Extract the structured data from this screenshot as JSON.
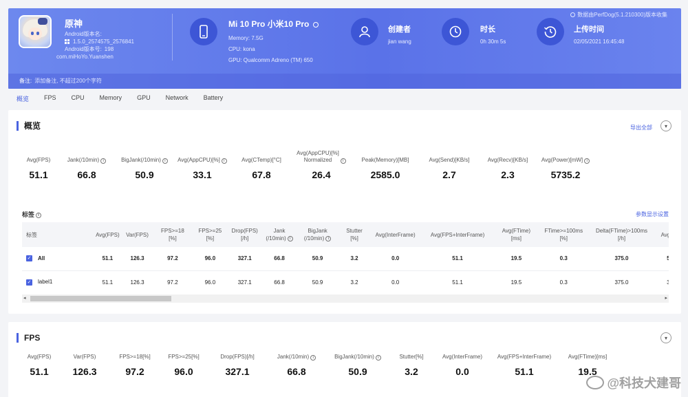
{
  "app": {
    "name": "原神",
    "android_version_name_label": "Android版本名:",
    "android_version_name": "1.5.0_2574575_2576841",
    "android_version_code_label": "Android版本号:",
    "android_version_code": "198",
    "package": "com.miHoYo.Yuanshen"
  },
  "device": {
    "title": "Mi 10 Pro 小米10 Pro",
    "memory": "Memory: 7.5G",
    "cpu": "CPU: kona",
    "gpu": "GPU: Qualcomm Adreno (TM) 650"
  },
  "creator": {
    "label": "创建者",
    "value": "jian wang"
  },
  "duration": {
    "label": "时长",
    "value": "0h 30m 5s"
  },
  "upload": {
    "label": "上传时间",
    "value": "02/05/2021 16:45:48"
  },
  "top_note": "数据由PerfDog(5.1.210300)版本收集",
  "notes": {
    "label": "备注:",
    "placeholder": "添加备注, 不超过200个字符"
  },
  "tabs": [
    "概览",
    "FPS",
    "CPU",
    "Memory",
    "GPU",
    "Network",
    "Battery"
  ],
  "overview": {
    "title": "概览",
    "export_label": "导出全部",
    "metrics": [
      {
        "label": "Avg(FPS)",
        "value": "51.1",
        "info": false
      },
      {
        "label": "Jank(/10min)",
        "value": "66.8",
        "info": true
      },
      {
        "label": "BigJank(/10min)",
        "value": "50.9",
        "info": true
      },
      {
        "label": "Avg(AppCPU)[%]",
        "value": "33.1",
        "info": true
      },
      {
        "label": "Avg(CTemp)[°C]",
        "value": "67.8",
        "info": false
      },
      {
        "label": "Avg(AppCPU)[%]\nNormalized",
        "value": "26.4",
        "info": true
      },
      {
        "label": "Peak(Memory)[MB]",
        "value": "2585.0",
        "info": false
      },
      {
        "label": "Avg(Send)[KB/s]",
        "value": "2.7",
        "info": false
      },
      {
        "label": "Avg(Recv)[KB/s]",
        "value": "2.3",
        "info": false
      },
      {
        "label": "Avg(Power)[mW]",
        "value": "5735.2",
        "info": true
      }
    ],
    "labels_section": "标签",
    "param_settings": "参数显示设置",
    "table": {
      "headers": [
        "标签",
        "Avg(FPS)",
        "Var(FPS)",
        "FPS>=18\n[%]",
        "FPS>=25\n[%]",
        "Drop(FPS)\n[/h]",
        "Jank\n(/10min)",
        "BigJank\n(/10min)",
        "Stutter\n[%]",
        "Avg(InterFrame)",
        "Avg(FPS+InterFrame)",
        "Avg(FTime)\n[ms]",
        "FTime>=100ms\n[%]",
        "Delta(FTime)>100ms\n[/h]",
        "Avg(A"
      ],
      "rows": [
        [
          "All",
          "51.1",
          "126.3",
          "97.2",
          "96.0",
          "327.1",
          "66.8",
          "50.9",
          "3.2",
          "0.0",
          "51.1",
          "19.5",
          "0.3",
          "375.0",
          "5"
        ],
        [
          "label1",
          "51.1",
          "126.3",
          "97.2",
          "96.0",
          "327.1",
          "66.8",
          "50.9",
          "3.2",
          "0.0",
          "51.1",
          "19.5",
          "0.3",
          "375.0",
          "3"
        ]
      ]
    }
  },
  "fps_card": {
    "title": "FPS",
    "metrics": [
      {
        "label": "Avg(FPS)",
        "value": "51.1",
        "info": false
      },
      {
        "label": "Var(FPS)",
        "value": "126.3",
        "info": false
      },
      {
        "label": "FPS>=18[%]",
        "value": "97.2",
        "info": false
      },
      {
        "label": "FPS>=25[%]",
        "value": "96.0",
        "info": false
      },
      {
        "label": "Drop(FPS)[/h]",
        "value": "327.1",
        "info": false
      },
      {
        "label": "Jank(/10min)",
        "value": "66.8",
        "info": true
      },
      {
        "label": "BigJank(/10min)",
        "value": "50.9",
        "info": true
      },
      {
        "label": "Stutter[%]",
        "value": "3.2",
        "info": false
      },
      {
        "label": "Avg(InterFrame)",
        "value": "0.0",
        "info": false
      },
      {
        "label": "Avg(FPS+InterFrame)",
        "value": "51.1",
        "info": false
      },
      {
        "label": "Avg(FTime)[ms]",
        "value": "19.5",
        "info": false
      }
    ]
  },
  "watermark": "@科技犬建哥"
}
